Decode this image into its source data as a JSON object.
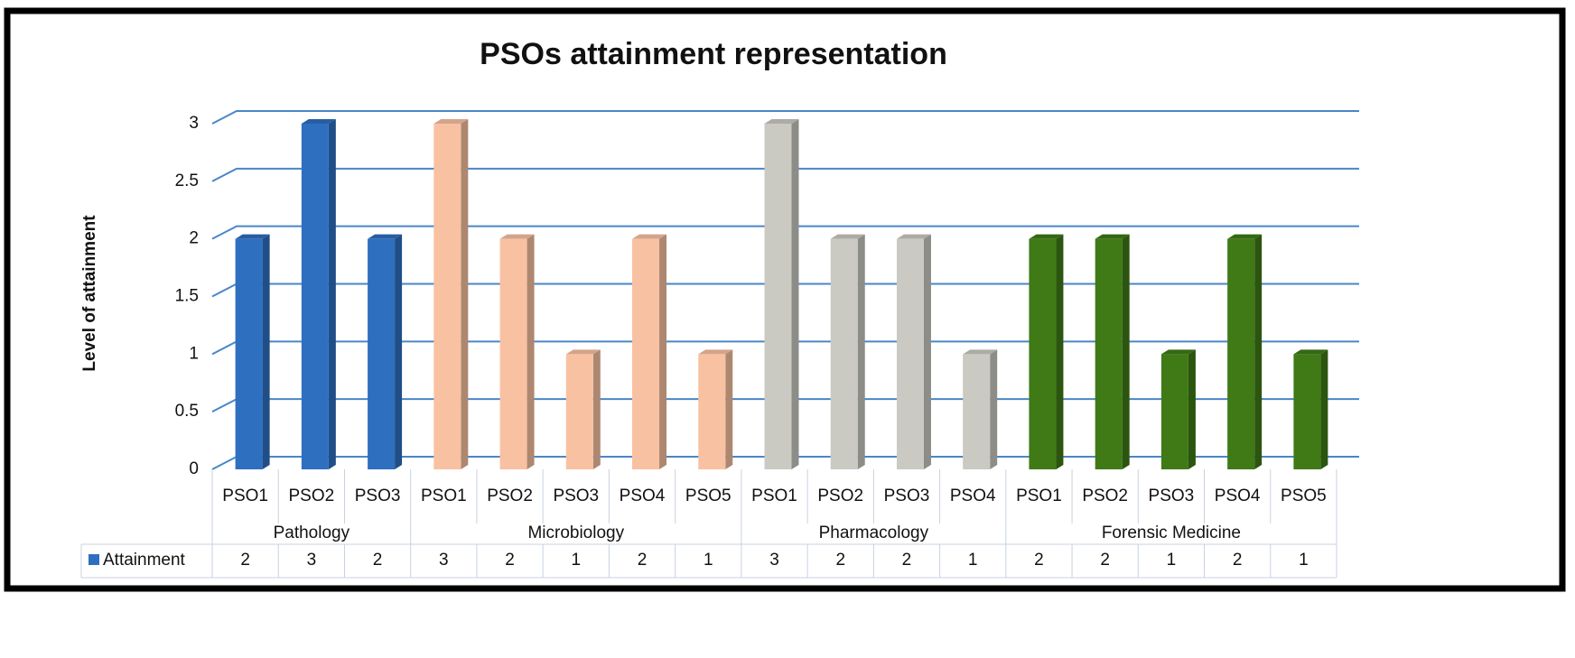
{
  "chart_data": {
    "type": "bar",
    "title": "PSOs attainment representation",
    "y_label": "Level of attainment",
    "series": {
      "name": "Attainment",
      "color": "#2e6fc0"
    },
    "groups": [
      {
        "name": "Pathology",
        "color": "#2e6fc0",
        "categories": [
          "PSO1",
          "PSO2",
          "PSO3"
        ],
        "values": [
          2,
          3,
          2
        ]
      },
      {
        "name": "Microbiology",
        "color": "#f8c1a2",
        "categories": [
          "PSO1",
          "PSO2",
          "PSO3",
          "PSO4",
          "PSO5"
        ],
        "values": [
          3,
          2,
          1,
          2,
          1
        ]
      },
      {
        "name": "Pharmacology",
        "color": "#cacac2",
        "categories": [
          "PSO1",
          "PSO2",
          "PSO3",
          "PSO4"
        ],
        "values": [
          3,
          2,
          2,
          1
        ]
      },
      {
        "name": "Forensic Medicine",
        "color": "#3f7a16",
        "categories": [
          "PSO1",
          "PSO2",
          "PSO3",
          "PSO4",
          "PSO5"
        ],
        "values": [
          2,
          2,
          1,
          2,
          1
        ]
      }
    ],
    "ylim": [
      0,
      3
    ],
    "yticks": [
      0,
      0.5,
      1,
      1.5,
      2,
      2.5,
      3
    ],
    "grid": true
  }
}
